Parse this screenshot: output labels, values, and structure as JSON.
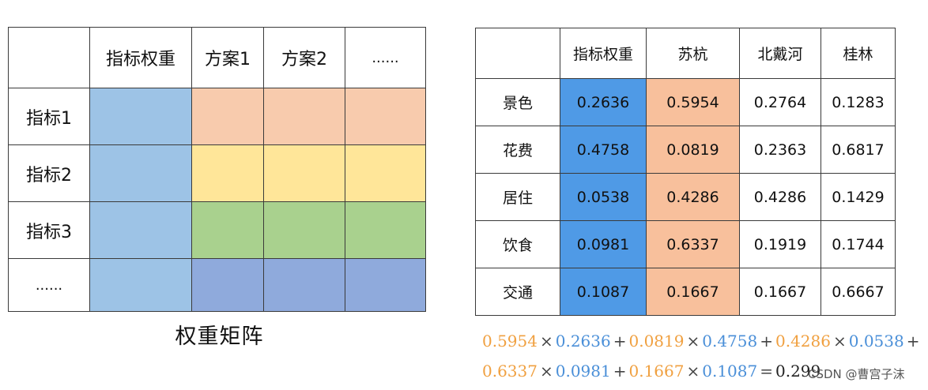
{
  "colors": {
    "blue": "#9dc3e6",
    "orange": "#f8cbad",
    "yellow": "#ffe699",
    "green": "#a9d18e",
    "periwinkle": "#8faadc",
    "table_blue": "#4f9ae6",
    "table_orange": "#f8c09c",
    "formula_orange": "#f0a040",
    "formula_blue": "#4a8fd8",
    "formula_dark": "#222222"
  },
  "matrix": {
    "headers": [
      "",
      "指标权重",
      "方案1",
      "方案2",
      "......"
    ],
    "row_labels": [
      "指标1",
      "指标2",
      "指标3",
      "......"
    ],
    "caption": "权重矩阵"
  },
  "table": {
    "headers": [
      "",
      "指标权重",
      "苏杭",
      "北戴河",
      "桂林"
    ],
    "rows": [
      {
        "label": "景色",
        "values": [
          "0.2636",
          "0.5954",
          "0.2764",
          "0.1283"
        ]
      },
      {
        "label": "花费",
        "values": [
          "0.4758",
          "0.0819",
          "0.2363",
          "0.6817"
        ]
      },
      {
        "label": "居住",
        "values": [
          "0.0538",
          "0.4286",
          "0.4286",
          "0.1429"
        ]
      },
      {
        "label": "饮食",
        "values": [
          "0.0981",
          "0.6337",
          "0.1919",
          "0.1744"
        ]
      },
      {
        "label": "交通",
        "values": [
          "0.1087",
          "0.1667",
          "0.1667",
          "0.6667"
        ]
      }
    ]
  },
  "formula": {
    "times": "×",
    "plus": "+",
    "equals": "=",
    "line1": [
      {
        "a": "0.5954",
        "b": "0.2636"
      },
      {
        "a": "0.0819",
        "b": "0.4758"
      },
      {
        "a": "0.4286",
        "b": "0.0538"
      }
    ],
    "line2": [
      {
        "a": "0.6337",
        "b": "0.0981"
      },
      {
        "a": "0.1667",
        "b": "0.1087"
      }
    ],
    "result": "0.299"
  },
  "watermark": "CSDN @曹宫子沫"
}
